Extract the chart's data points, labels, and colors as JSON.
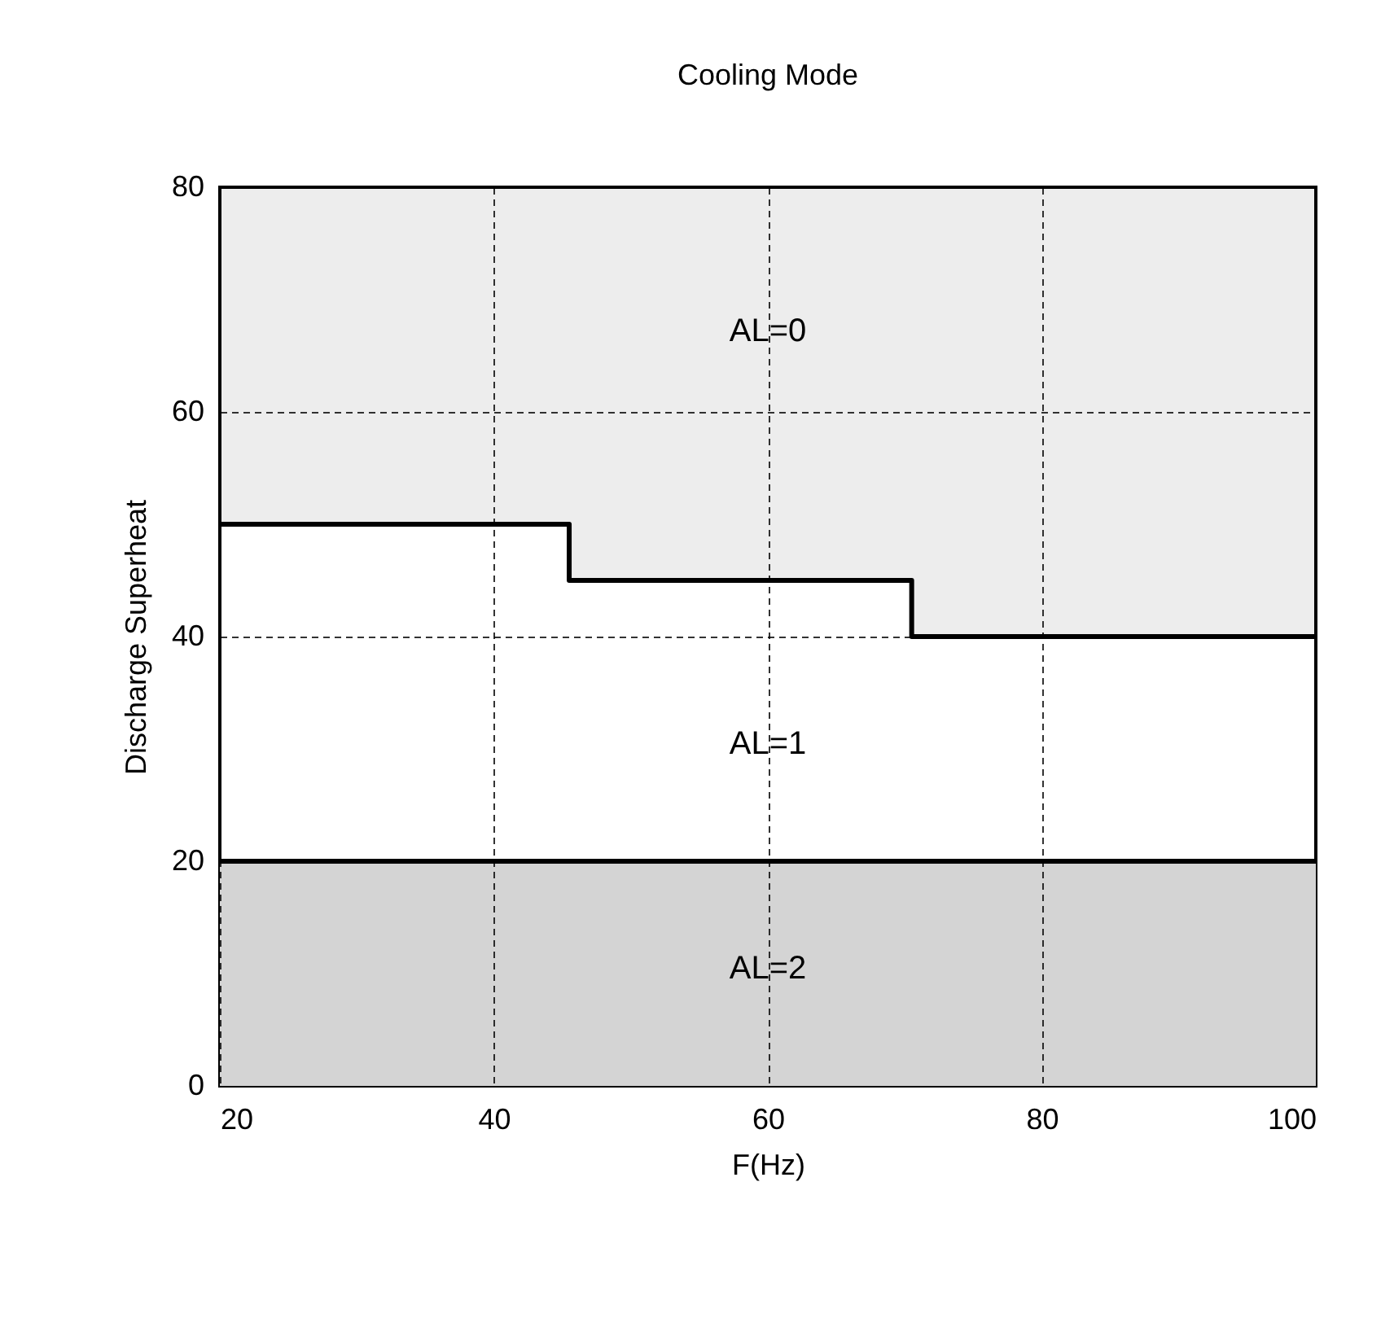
{
  "chart_data": {
    "type": "step",
    "title": "Cooling Mode",
    "xlabel": "F(Hz)",
    "ylabel": "Discharge Superheat",
    "x": [
      20,
      45.5,
      70.5,
      100
    ],
    "series": [
      {
        "color": "#000000",
        "values": [
          50,
          45,
          40,
          40
        ],
        "lower": [
          50,
          45,
          40,
          40
        ],
        "upper": [
          80,
          80,
          80,
          80
        ]
      }
    ],
    "bands": [
      {
        "axis": "y",
        "from": 0,
        "to": 20,
        "color": "#d4d4d4"
      }
    ],
    "ref_lines": [
      {
        "axis": "y",
        "value": 20,
        "color": "#000000",
        "line_style": "solid"
      }
    ],
    "annotations": [
      "AL=0",
      "AL=1",
      "AL=2"
    ],
    "xlim": [
      20,
      100
    ],
    "ylim": [
      0,
      80
    ],
    "xticks": [
      20,
      40,
      60,
      80,
      100
    ],
    "yticks": [
      0,
      20,
      40,
      60,
      80
    ],
    "grid": true,
    "marker": "none",
    "line_style": "solid"
  }
}
